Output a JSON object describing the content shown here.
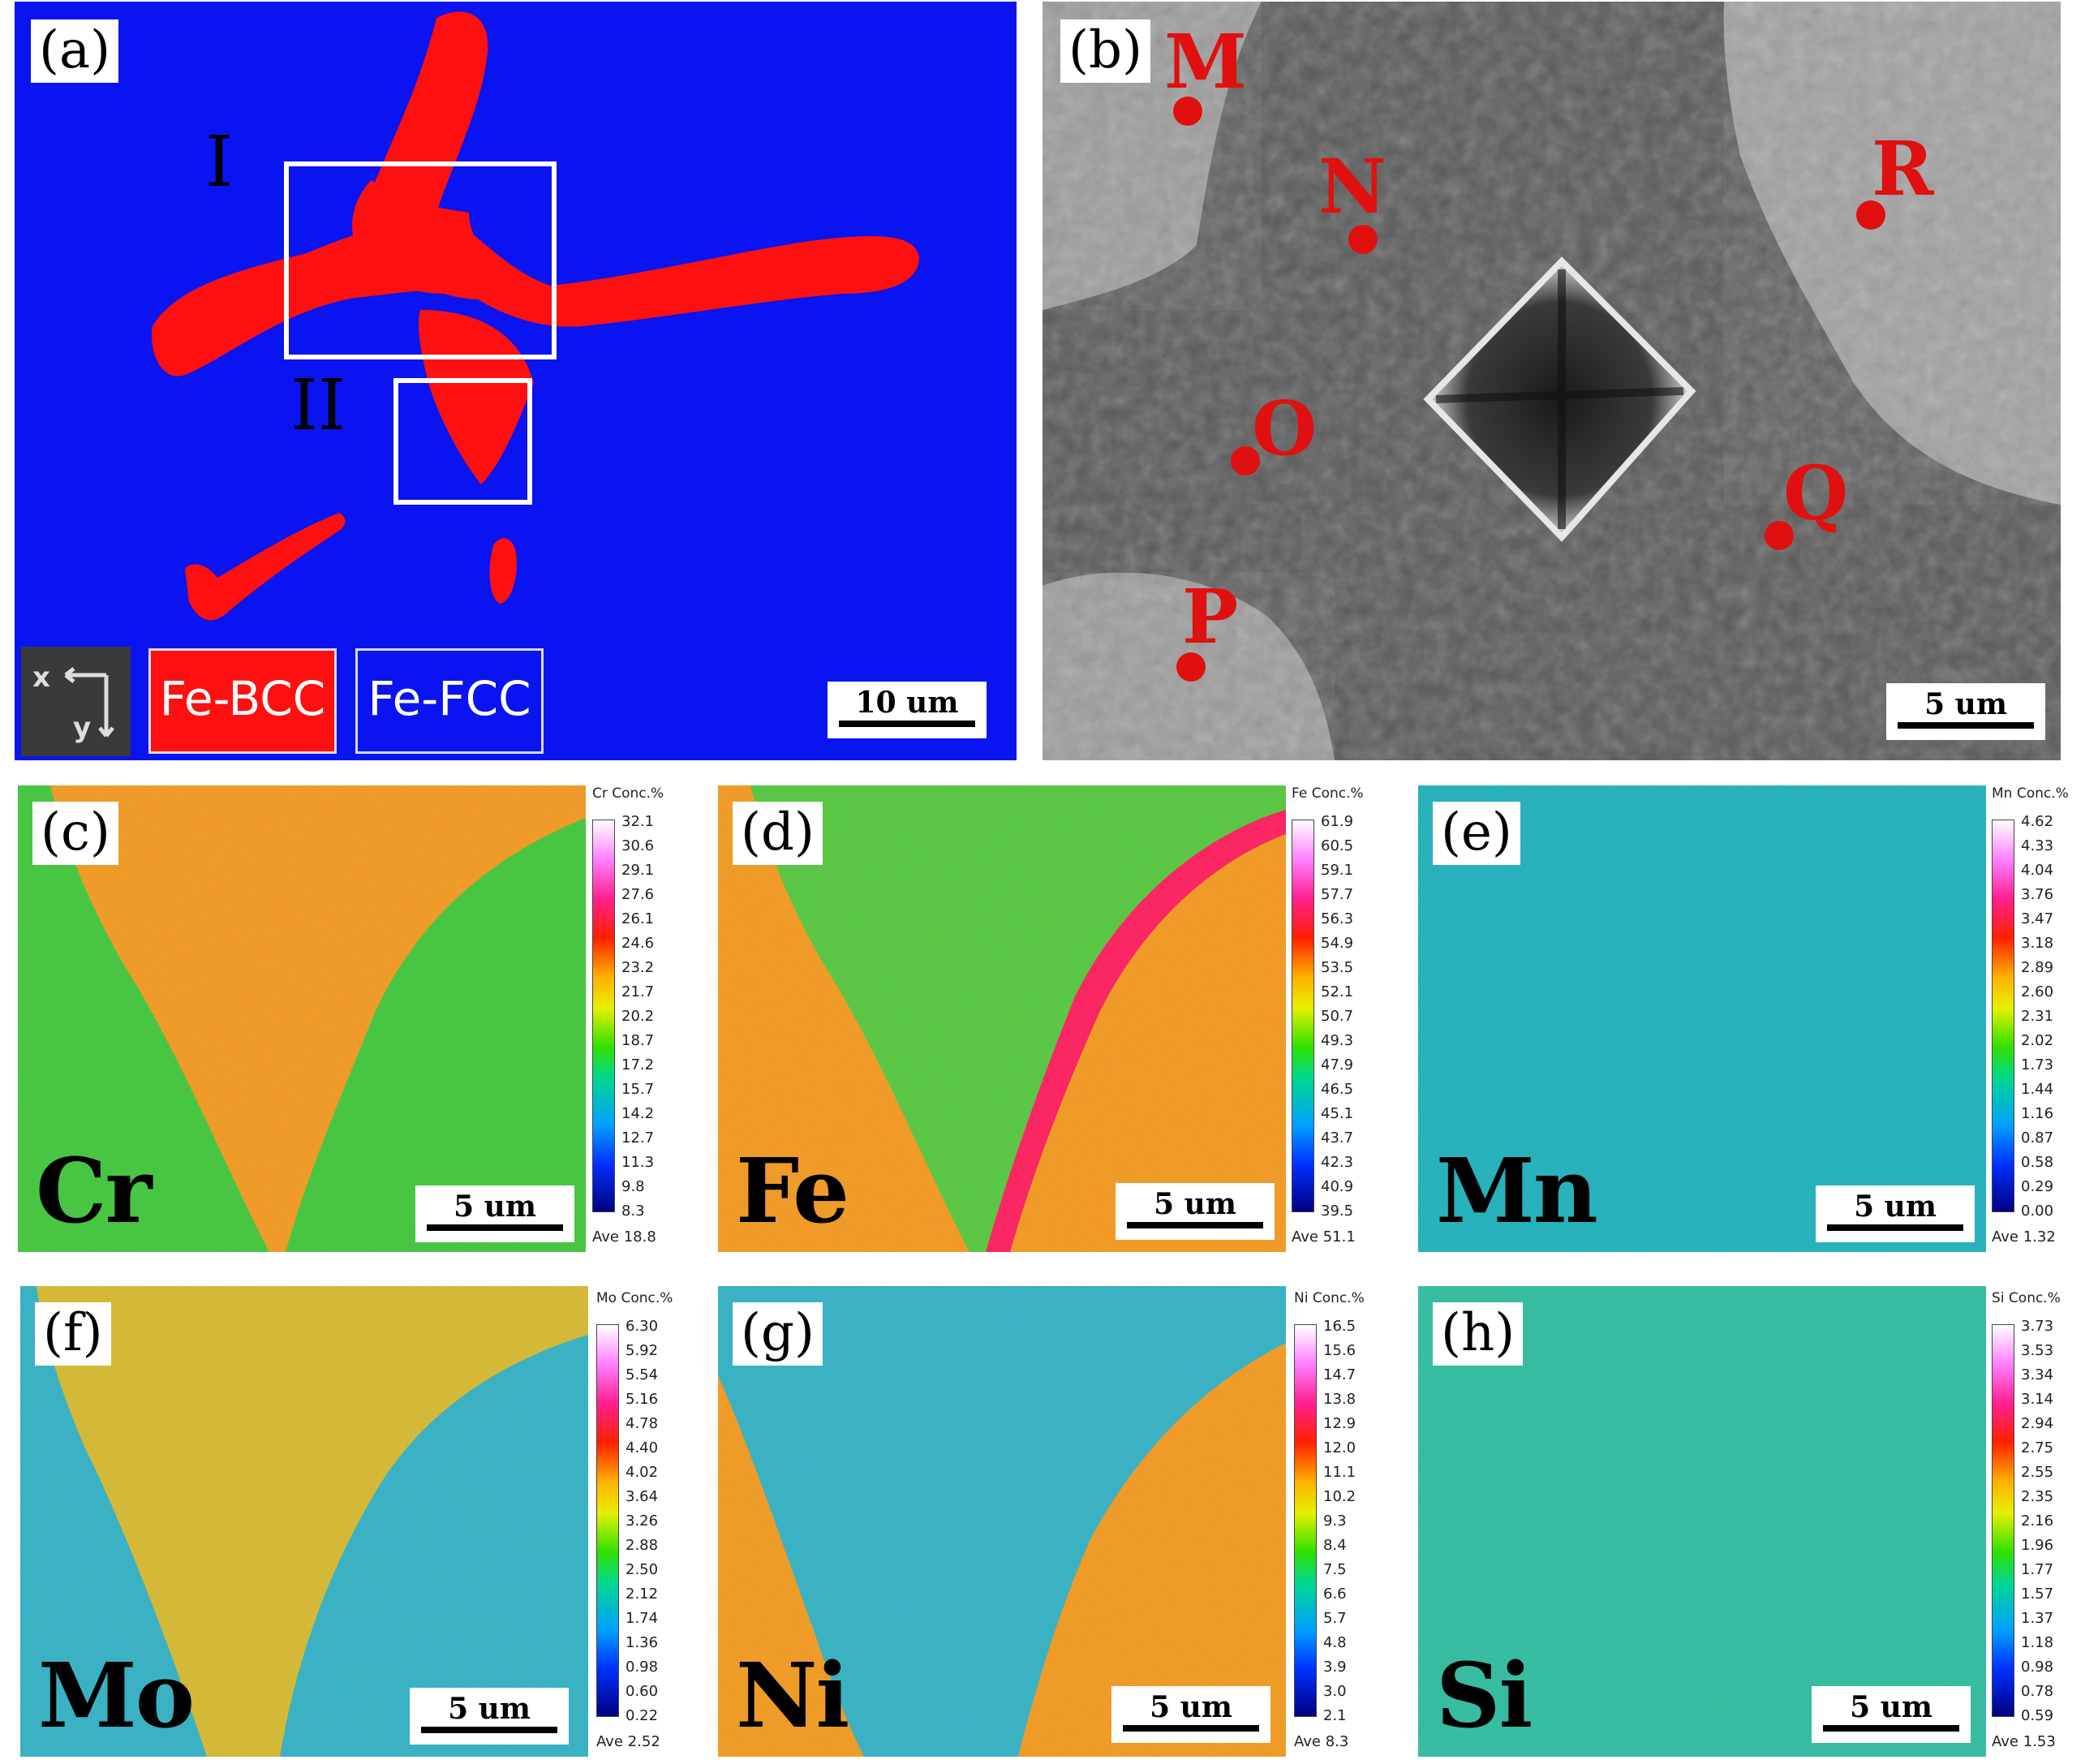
{
  "panel_a": {
    "label": "(a)",
    "regions": [
      "I",
      "II"
    ],
    "legend": [
      "Fe-BCC",
      "Fe-FCC"
    ],
    "axes_icon": {
      "x": "x",
      "y": "y"
    },
    "scale": "10 um",
    "colors": {
      "background": "#0a14f0",
      "phase": "#ff1010"
    }
  },
  "panel_b": {
    "label": "(b)",
    "points": [
      "M",
      "N",
      "O",
      "P",
      "Q",
      "R"
    ],
    "scale": "5 um",
    "colors": {
      "marker": "#e01010"
    }
  },
  "maps": [
    {
      "label": "(c)",
      "element": "Cr",
      "cbar_title": "Cr  Conc.%",
      "ticks": [
        "32.1",
        "30.6",
        "29.1",
        "27.6",
        "26.1",
        "24.6",
        "23.2",
        "21.7",
        "20.2",
        "18.7",
        "17.2",
        "15.7",
        "14.2",
        "12.7",
        "11.3",
        "9.8",
        "8.3"
      ],
      "ave": "Ave 18.8",
      "scale": "5 um"
    },
    {
      "label": "(d)",
      "element": "Fe",
      "cbar_title": "Fe  Conc.%",
      "ticks": [
        "61.9",
        "60.5",
        "59.1",
        "57.7",
        "56.3",
        "54.9",
        "53.5",
        "52.1",
        "50.7",
        "49.3",
        "47.9",
        "46.5",
        "45.1",
        "43.7",
        "42.3",
        "40.9",
        "39.5"
      ],
      "ave": "Ave 51.1",
      "scale": "5 um"
    },
    {
      "label": "(e)",
      "element": "Mn",
      "cbar_title": "Mn  Conc.%",
      "ticks": [
        "4.62",
        "4.33",
        "4.04",
        "3.76",
        "3.47",
        "3.18",
        "2.89",
        "2.60",
        "2.31",
        "2.02",
        "1.73",
        "1.44",
        "1.16",
        "0.87",
        "0.58",
        "0.29",
        "0.00"
      ],
      "ave": "Ave 1.32",
      "scale": "5 um"
    },
    {
      "label": "(f)",
      "element": "Mo",
      "cbar_title": "Mo  Conc.%",
      "ticks": [
        "6.30",
        "5.92",
        "5.54",
        "5.16",
        "4.78",
        "4.40",
        "4.02",
        "3.64",
        "3.26",
        "2.88",
        "2.50",
        "2.12",
        "1.74",
        "1.36",
        "0.98",
        "0.60",
        "0.22"
      ],
      "ave": "Ave 2.52",
      "scale": "5 um"
    },
    {
      "label": "(g)",
      "element": "Ni",
      "cbar_title": "Ni  Conc.%",
      "ticks": [
        "16.5",
        "15.6",
        "14.7",
        "13.8",
        "12.9",
        "12.0",
        "11.1",
        "10.2",
        "9.3",
        "8.4",
        "7.5",
        "6.6",
        "5.7",
        "4.8",
        "3.9",
        "3.0",
        "2.1"
      ],
      "ave": "Ave 8.3",
      "scale": "5 um"
    },
    {
      "label": "(h)",
      "element": "Si",
      "cbar_title": "Si  Conc.%",
      "ticks": [
        "3.73",
        "3.53",
        "3.34",
        "3.14",
        "2.94",
        "2.75",
        "2.55",
        "2.35",
        "2.16",
        "1.96",
        "1.77",
        "1.57",
        "1.37",
        "1.18",
        "0.98",
        "0.78",
        "0.59"
      ],
      "ave": "Ave 1.53",
      "scale": "5 um"
    }
  ]
}
